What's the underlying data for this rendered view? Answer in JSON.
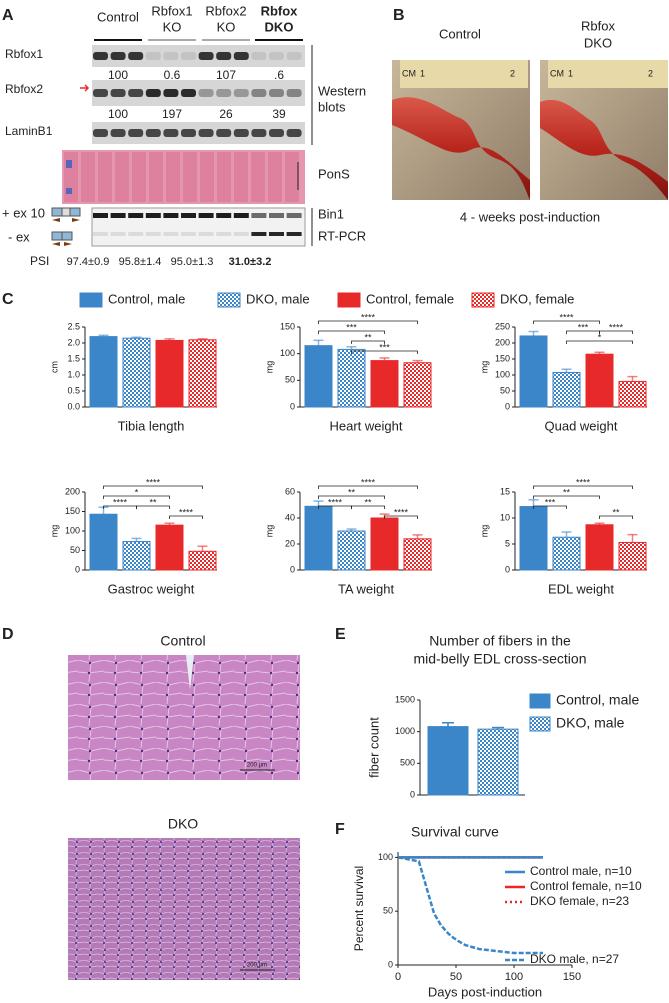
{
  "panels": [
    "A",
    "B",
    "C",
    "D",
    "E",
    "F"
  ],
  "western": {
    "groups": [
      [
        "Control"
      ],
      [
        "Rbfox1",
        "KO"
      ],
      [
        "Rbfox2",
        "KO"
      ],
      [
        "Rbfox",
        "DKO"
      ]
    ],
    "rows": [
      {
        "label": "Rbfox1",
        "quant": [
          "100",
          "0.6",
          "107",
          ".6"
        ]
      },
      {
        "label": "Rbfox2",
        "quant": [
          "100",
          "197",
          "26",
          "39"
        ]
      },
      {
        "label": "LaminB1"
      }
    ],
    "side_label": [
      "Western",
      "blots"
    ],
    "pons": "PonS",
    "rtpcr": [
      "Bin1",
      "RT-PCR"
    ],
    "exon_labels": [
      "+ ex 10",
      "- ex"
    ],
    "psi_label": "PSI",
    "psi": [
      "97.4±0.9",
      "95.8±1.4",
      "95.0±1.3",
      "31.0±3.2"
    ]
  },
  "photos": {
    "labels": [
      [
        "Control"
      ],
      [
        "Rbfox",
        "DKO"
      ]
    ],
    "ruler": [
      "CM",
      "1",
      "2"
    ],
    "caption": "4 - weeks post-induction"
  },
  "panel_c_legend": [
    {
      "name": "Control, male",
      "color": "#3b86c8",
      "pattern": "solid"
    },
    {
      "name": "DKO, male",
      "color": "#3b86c8",
      "pattern": "check"
    },
    {
      "name": "Control, female",
      "color": "#e8292a",
      "pattern": "solid"
    },
    {
      "name": "DKO, female",
      "color": "#e8292a",
      "pattern": "check"
    }
  ],
  "histology": {
    "labels": [
      "Control",
      "DKO"
    ],
    "scale": "200 µm"
  },
  "chart_data": [
    {
      "type": "bar",
      "xlabel": "Tibia length",
      "ylabel": "cm",
      "values": [
        2.2,
        2.15,
        2.08,
        2.1
      ],
      "errors": [
        0.04,
        0.03,
        0.05,
        0.03
      ],
      "ylim": [
        0,
        2.5
      ],
      "yticks": [
        {
          "value": 0,
          "label": "0.0"
        },
        {
          "value": 0.5,
          "label": "0.5"
        },
        {
          "value": 1,
          "label": "1.0"
        },
        {
          "value": 1.5,
          "label": "1.5"
        },
        {
          "value": 2,
          "label": "2.0"
        },
        {
          "value": 2.5,
          "label": "2.5"
        }
      ],
      "annotations": []
    },
    {
      "type": "bar",
      "xlabel": "Heart weight",
      "ylabel": "mg",
      "values": [
        115,
        108,
        87,
        83
      ],
      "errors": [
        10,
        5,
        5,
        4
      ],
      "ylim": [
        0,
        150
      ],
      "yticks": [
        0,
        50,
        100,
        150
      ],
      "annotations": [
        "****",
        "***",
        "**",
        "***"
      ]
    },
    {
      "type": "bar",
      "xlabel": "Quad weight",
      "ylabel": "mg",
      "values": [
        222,
        108,
        165,
        80
      ],
      "errors": [
        14,
        10,
        6,
        15
      ],
      "ylim": [
        0,
        250
      ],
      "yticks": [
        0,
        50,
        100,
        150,
        200,
        250
      ],
      "annotations": [
        "****",
        "***",
        "****",
        "*"
      ]
    },
    {
      "type": "bar",
      "xlabel": "Gastroc weight",
      "ylabel": "mg",
      "values": [
        143,
        73,
        115,
        48
      ],
      "errors": [
        18,
        8,
        5,
        13
      ],
      "ylim": [
        0,
        200
      ],
      "yticks": [
        0,
        50,
        100,
        150,
        200
      ],
      "annotations": [
        "****",
        "*",
        "****",
        "**",
        "****"
      ]
    },
    {
      "type": "bar",
      "xlabel": "TA weight",
      "ylabel": "mg",
      "values": [
        49,
        30,
        40,
        24
      ],
      "errors": [
        4,
        1.5,
        3,
        3
      ],
      "ylim": [
        0,
        60
      ],
      "yticks": [
        0,
        20,
        40,
        60
      ],
      "annotations": [
        "****",
        "**",
        "****",
        "**",
        "****"
      ]
    },
    {
      "type": "bar",
      "xlabel": "EDL weight",
      "ylabel": "mg",
      "values": [
        12.2,
        6.3,
        8.7,
        5.3
      ],
      "errors": [
        1.3,
        1,
        0.3,
        1.5
      ],
      "ylim": [
        0,
        15
      ],
      "yticks": [
        0,
        5,
        10,
        15
      ],
      "annotations": [
        "****",
        "**",
        "***",
        "**"
      ]
    },
    {
      "type": "bar",
      "title": [
        "Number of fibers in the",
        "mid-belly EDL cross-section"
      ],
      "ylabel": "fiber count",
      "series": [
        {
          "name": "Control, male",
          "color": "#3b86c8",
          "pattern": "solid",
          "values": [
            1080
          ],
          "errors": [
            60
          ]
        },
        {
          "name": "DKO, male",
          "color": "#3b86c8",
          "pattern": "check",
          "values": [
            1040
          ],
          "errors": [
            25
          ]
        }
      ],
      "ylim": [
        0,
        1500
      ],
      "yticks": [
        0,
        500,
        1000,
        1500
      ]
    },
    {
      "type": "line",
      "title": "Survival curve",
      "xlabel": "Days post-induction",
      "ylabel": "Percent survival",
      "xlim": [
        0,
        150
      ],
      "xticks": [
        0,
        50,
        100,
        150
      ],
      "ylim": [
        0,
        105
      ],
      "yticks": [
        0,
        50,
        100
      ],
      "series": [
        {
          "name": "Control male, n=10",
          "color": "#3b86c8",
          "style": "solid",
          "x": [
            0,
            125
          ],
          "values": [
            100,
            100
          ]
        },
        {
          "name": "Control female, n=10",
          "color": "#e8292a",
          "style": "solid",
          "x": [
            0,
            125
          ],
          "values": [
            100,
            100
          ]
        },
        {
          "name": "DKO female, n=23",
          "color": "#e8292a",
          "style": "dotted",
          "x": [
            0,
            125
          ],
          "values": [
            100,
            100
          ]
        },
        {
          "name": "DKO male, n=27",
          "color": "#3b86c8",
          "style": "dashed",
          "x": [
            0,
            18,
            19,
            20,
            21,
            22,
            23,
            24,
            25,
            26,
            27,
            28,
            29,
            30,
            31,
            33,
            35,
            37,
            40,
            43,
            47,
            52,
            58,
            70,
            100,
            125
          ],
          "values": [
            100,
            96.3,
            92.6,
            88.9,
            85.2,
            81.5,
            77.8,
            74.1,
            70.4,
            66.7,
            63.0,
            59.3,
            55.6,
            51.9,
            48.1,
            44.4,
            40.7,
            37.0,
            33.3,
            29.6,
            25.9,
            22.2,
            18.5,
            14.8,
            11.1,
            11.1
          ]
        }
      ]
    }
  ]
}
